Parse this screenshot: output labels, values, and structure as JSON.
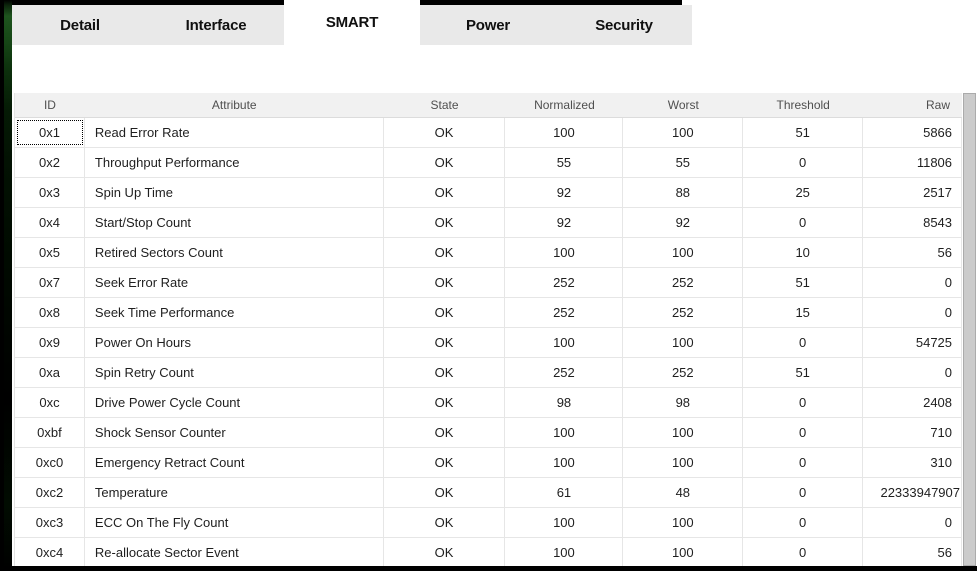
{
  "colors": {
    "edge_green": "#1e541e",
    "tab_inactive_bg": "#e9e9e9",
    "tab_active_bg": "#ffffff",
    "header_bg": "#f1f1f1",
    "grid_line": "#e6e6e6",
    "scrollbar": "#cbcbcb"
  },
  "tabs": {
    "items": [
      {
        "label": "Detail",
        "active": false
      },
      {
        "label": "Interface",
        "active": false
      },
      {
        "label": "SMART",
        "active": true
      },
      {
        "label": "Power",
        "active": false
      },
      {
        "label": "Security",
        "active": false
      }
    ]
  },
  "table": {
    "columns": [
      "ID",
      "Attribute",
      "State",
      "Normalized",
      "Worst",
      "Threshold",
      "Raw"
    ],
    "rows": [
      {
        "id": "0x1",
        "attribute": "Read Error Rate",
        "state": "OK",
        "normalized": "100",
        "worst": "100",
        "threshold": "51",
        "raw": "5866",
        "focused": true
      },
      {
        "id": "0x2",
        "attribute": "Throughput Performance",
        "state": "OK",
        "normalized": "55",
        "worst": "55",
        "threshold": "0",
        "raw": "11806"
      },
      {
        "id": "0x3",
        "attribute": "Spin Up Time",
        "state": "OK",
        "normalized": "92",
        "worst": "88",
        "threshold": "25",
        "raw": "2517"
      },
      {
        "id": "0x4",
        "attribute": "Start/Stop Count",
        "state": "OK",
        "normalized": "92",
        "worst": "92",
        "threshold": "0",
        "raw": "8543"
      },
      {
        "id": "0x5",
        "attribute": "Retired Sectors Count",
        "state": "OK",
        "normalized": "100",
        "worst": "100",
        "threshold": "10",
        "raw": "56"
      },
      {
        "id": "0x7",
        "attribute": "Seek Error Rate",
        "state": "OK",
        "normalized": "252",
        "worst": "252",
        "threshold": "51",
        "raw": "0"
      },
      {
        "id": "0x8",
        "attribute": "Seek Time Performance",
        "state": "OK",
        "normalized": "252",
        "worst": "252",
        "threshold": "15",
        "raw": "0"
      },
      {
        "id": "0x9",
        "attribute": "Power On Hours",
        "state": "OK",
        "normalized": "100",
        "worst": "100",
        "threshold": "0",
        "raw": "54725"
      },
      {
        "id": "0xa",
        "attribute": "Spin Retry Count",
        "state": "OK",
        "normalized": "252",
        "worst": "252",
        "threshold": "51",
        "raw": "0"
      },
      {
        "id": "0xc",
        "attribute": "Drive Power Cycle Count",
        "state": "OK",
        "normalized": "98",
        "worst": "98",
        "threshold": "0",
        "raw": "2408"
      },
      {
        "id": "0xbf",
        "attribute": "Shock Sensor Counter",
        "state": "OK",
        "normalized": "100",
        "worst": "100",
        "threshold": "0",
        "raw": "710"
      },
      {
        "id": "0xc0",
        "attribute": "Emergency Retract Count",
        "state": "OK",
        "normalized": "100",
        "worst": "100",
        "threshold": "0",
        "raw": "310"
      },
      {
        "id": "0xc2",
        "attribute": "Temperature",
        "state": "OK",
        "normalized": "61",
        "worst": "48",
        "threshold": "0",
        "raw": "22333947907",
        "raw_clipped": true
      },
      {
        "id": "0xc3",
        "attribute": "ECC On The Fly Count",
        "state": "OK",
        "normalized": "100",
        "worst": "100",
        "threshold": "0",
        "raw": "0"
      },
      {
        "id": "0xc4",
        "attribute": "Re-allocate Sector Event",
        "state": "OK",
        "normalized": "100",
        "worst": "100",
        "threshold": "0",
        "raw": "56"
      }
    ]
  }
}
